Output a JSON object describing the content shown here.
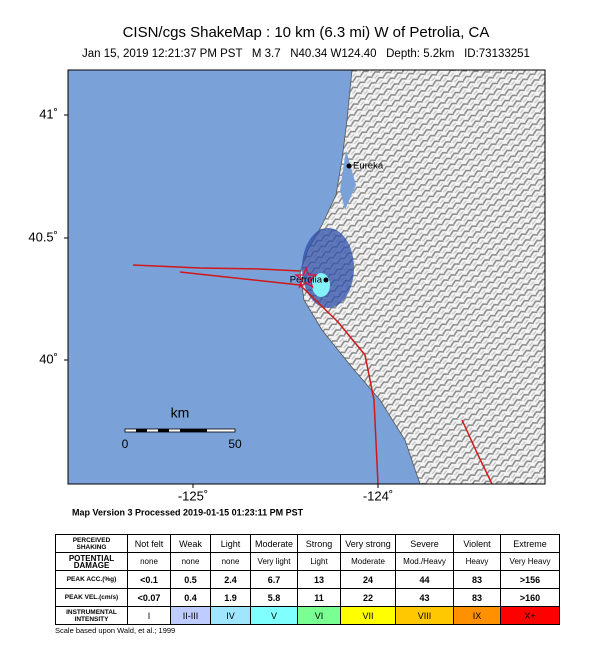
{
  "header": {
    "title": "CISN/cgs ShakeMap : 10 km (6.3 mi) W of Petrolia, CA",
    "subtitle": "Jan 15, 2019 12:21:37 PM PST   M 3.7   N40.34 W124.40   Depth: 5.2km   ID:73133251"
  },
  "map": {
    "lat_labels": [
      "41˚",
      "40.5˚",
      "40˚"
    ],
    "lon_labels": [
      "-125˚",
      "-124˚"
    ],
    "scale_unit": "km",
    "scale_ticks": [
      "0",
      "50"
    ],
    "places": [
      "Eureka",
      "Petrolia"
    ]
  },
  "version": "Map Version 3 Processed 2019-01-15 01:23:11 PM PST",
  "legend": {
    "rows": [
      [
        "PERCEIVED SHAKING",
        "Not felt",
        "Weak",
        "Light",
        "Moderate",
        "Strong",
        "Very strong",
        "Severe",
        "Violent",
        "Extreme"
      ],
      [
        "POTENTIAL DAMAGE",
        "none",
        "none",
        "none",
        "Very light",
        "Light",
        "Moderate",
        "Mod./Heavy",
        "Heavy",
        "Very Heavy"
      ],
      [
        "PEAK ACC.(%g)",
        "<0.1",
        "0.5",
        "2.4",
        "6.7",
        "13",
        "24",
        "44",
        "83",
        ">156"
      ],
      [
        "PEAK VEL.(cm/s)",
        "<0.07",
        "0.4",
        "1.9",
        "5.8",
        "11",
        "22",
        "43",
        "83",
        ">160"
      ],
      [
        "INSTRUMENTAL INTENSITY",
        "I",
        "II-III",
        "IV",
        "V",
        "VI",
        "VII",
        "VIII",
        "IX",
        "X+"
      ]
    ],
    "note": "Scale based upon Wald, et al.; 1999"
  }
}
